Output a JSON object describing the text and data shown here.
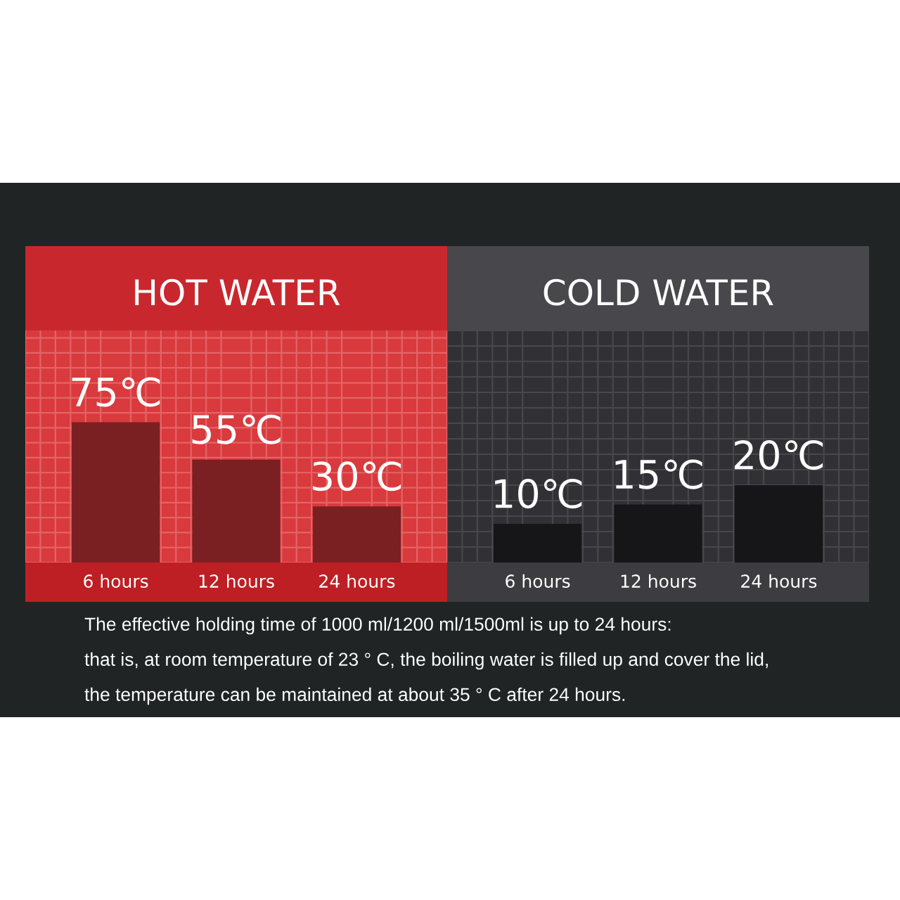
{
  "chart_data": [
    {
      "type": "bar",
      "title": "HOT WATER",
      "categories": [
        "6 hours",
        "12 hours",
        "24 hours"
      ],
      "values": [
        75,
        55,
        30
      ],
      "color": "#7a1f22",
      "value_labels": [
        "75℃",
        "55℃",
        "30℃"
      ],
      "ylim": [
        0,
        124
      ],
      "grid": true,
      "tick_labels": "x",
      "annotations": [
        "The effective holding time of 1000 ml/1200 ml/1500ml is up to 24 hours:",
        "that is, at room temperature of 23 ° C, the boiling water is filled up and cover the lid,",
        "the temperature can be maintained at about 35 ° C after 24 hours."
      ]
    },
    {
      "type": "bar",
      "title": "COLD WATER",
      "categories": [
        "6 hours",
        "12 hours",
        "24 hours"
      ],
      "values": [
        10,
        15,
        20
      ],
      "color": "#161618",
      "value_labels": [
        "10℃",
        "15℃",
        "20℃"
      ],
      "ylim": [
        0,
        60
      ],
      "grid": true,
      "tick_labels": "x"
    }
  ]
}
